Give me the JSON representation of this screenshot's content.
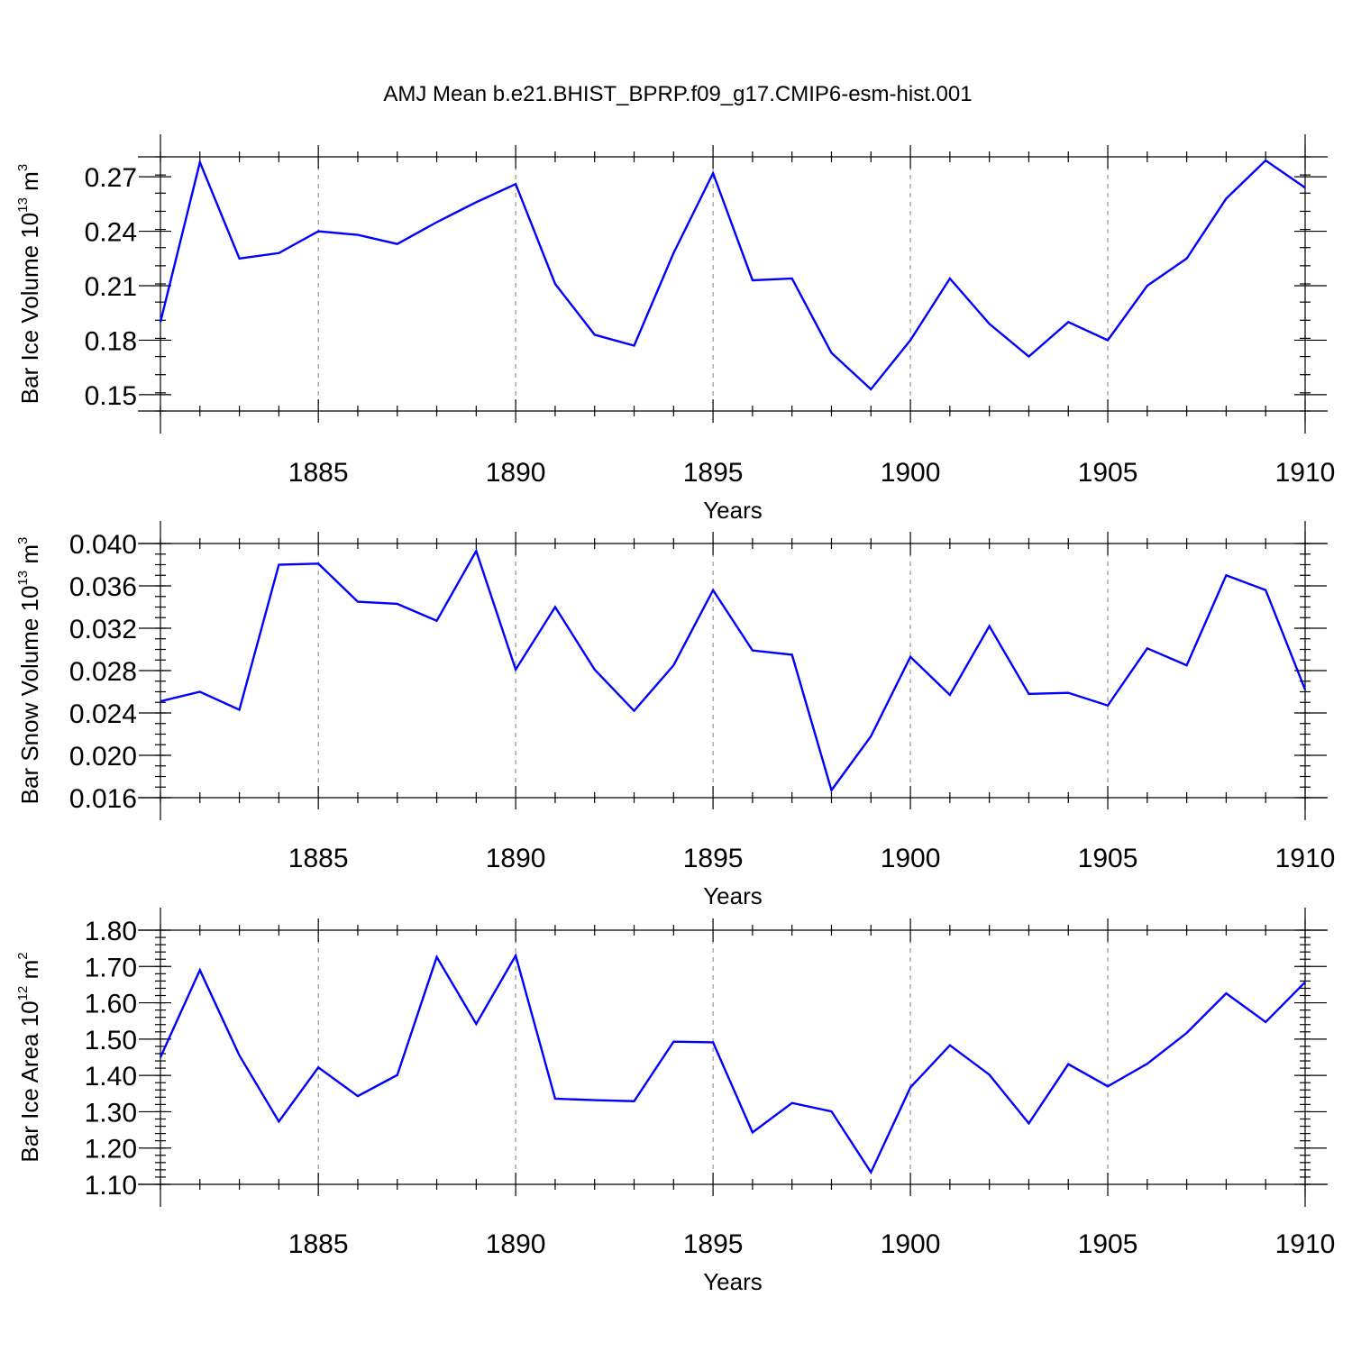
{
  "title": "AMJ Mean b.e21.BHIST_BPRP.f09_g17.CMIP6-esm-hist.001",
  "colors": {
    "line": "#0000ff",
    "axis": "#000000",
    "grid": "#808080"
  },
  "chart_data": [
    {
      "type": "line",
      "ylabel_main": "Bar Ice Volume 10",
      "ylabel_exp": "13",
      "ylabel_unit": " m",
      "ylabel_unit_exp": "3",
      "xlabel": "Years",
      "xlim": [
        1881,
        1910
      ],
      "ylim": [
        0.141,
        0.281
      ],
      "x_ticks": [
        1885,
        1890,
        1895,
        1900,
        1905,
        1910
      ],
      "y_ticks": [
        0.15,
        0.18,
        0.21,
        0.24,
        0.27
      ],
      "y_tick_labels": [
        "0.15",
        "0.18",
        "0.21",
        "0.24",
        "0.27"
      ],
      "y_minor_step": 0.01,
      "grid": "vertical dashed at major x ticks",
      "x": [
        1881,
        1882,
        1883,
        1884,
        1885,
        1886,
        1887,
        1888,
        1889,
        1890,
        1891,
        1892,
        1893,
        1894,
        1895,
        1896,
        1897,
        1898,
        1899,
        1900,
        1901,
        1902,
        1903,
        1904,
        1905,
        1906,
        1907,
        1908,
        1909,
        1910
      ],
      "values": [
        0.19,
        0.278,
        0.225,
        0.228,
        0.24,
        0.238,
        0.233,
        0.245,
        0.256,
        0.266,
        0.211,
        0.183,
        0.177,
        0.228,
        0.272,
        0.213,
        0.214,
        0.173,
        0.153,
        0.18,
        0.214,
        0.189,
        0.171,
        0.19,
        0.18,
        0.21,
        0.225,
        0.258,
        0.279,
        0.264
      ]
    },
    {
      "type": "line",
      "ylabel_main": "Bar Snow Volume 10",
      "ylabel_exp": "13",
      "ylabel_unit": " m",
      "ylabel_unit_exp": "3",
      "xlabel": "Years",
      "xlim": [
        1881,
        1910
      ],
      "ylim": [
        0.016,
        0.04
      ],
      "x_ticks": [
        1885,
        1890,
        1895,
        1900,
        1905,
        1910
      ],
      "y_ticks": [
        0.016,
        0.02,
        0.024,
        0.028,
        0.032,
        0.036,
        0.04
      ],
      "y_tick_labels": [
        "0.016",
        "0.020",
        "0.024",
        "0.028",
        "0.032",
        "0.036",
        "0.040"
      ],
      "y_minor_step": 0.001,
      "grid": "vertical dashed at major x ticks",
      "x": [
        1881,
        1882,
        1883,
        1884,
        1885,
        1886,
        1887,
        1888,
        1889,
        1890,
        1891,
        1892,
        1893,
        1894,
        1895,
        1896,
        1897,
        1898,
        1899,
        1900,
        1901,
        1902,
        1903,
        1904,
        1905,
        1906,
        1907,
        1908,
        1909,
        1910
      ],
      "values": [
        0.0251,
        0.026,
        0.0243,
        0.038,
        0.0381,
        0.0345,
        0.0343,
        0.0327,
        0.0393,
        0.0281,
        0.034,
        0.0281,
        0.0242,
        0.0285,
        0.0356,
        0.0299,
        0.0295,
        0.0167,
        0.0218,
        0.0293,
        0.0257,
        0.0322,
        0.0258,
        0.0259,
        0.0247,
        0.0301,
        0.0285,
        0.037,
        0.0356,
        0.0262
      ]
    },
    {
      "type": "line",
      "ylabel_main": "Bar Ice Area 10",
      "ylabel_exp": "12",
      "ylabel_unit": " m",
      "ylabel_unit_exp": "2",
      "xlabel": "Years",
      "xlim": [
        1881,
        1910
      ],
      "ylim": [
        1.1,
        1.8
      ],
      "x_ticks": [
        1885,
        1890,
        1895,
        1900,
        1905,
        1910
      ],
      "y_ticks": [
        1.1,
        1.2,
        1.3,
        1.4,
        1.5,
        1.6,
        1.7,
        1.8
      ],
      "y_tick_labels": [
        "1.10",
        "1.20",
        "1.30",
        "1.40",
        "1.50",
        "1.60",
        "1.70",
        "1.80"
      ],
      "y_minor_step": 0.02,
      "grid": "vertical dashed at major x ticks",
      "x": [
        1881,
        1882,
        1883,
        1884,
        1885,
        1886,
        1887,
        1888,
        1889,
        1890,
        1891,
        1892,
        1893,
        1894,
        1895,
        1896,
        1897,
        1898,
        1899,
        1900,
        1901,
        1902,
        1903,
        1904,
        1905,
        1906,
        1907,
        1908,
        1909,
        1910
      ],
      "values": [
        1.45,
        1.69,
        1.455,
        1.273,
        1.422,
        1.343,
        1.401,
        1.726,
        1.542,
        1.73,
        1.336,
        1.332,
        1.329,
        1.493,
        1.491,
        1.243,
        1.324,
        1.301,
        1.133,
        1.367,
        1.483,
        1.402,
        1.268,
        1.431,
        1.37,
        1.432,
        1.517,
        1.626,
        1.547,
        1.657
      ]
    }
  ]
}
